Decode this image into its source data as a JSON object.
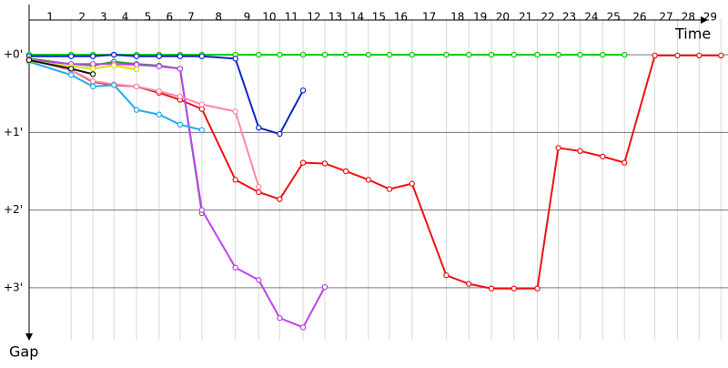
{
  "chart_data": {
    "type": "line",
    "x_label": "Time",
    "y_label": "Gap",
    "categories": [
      "1",
      "2",
      "3",
      "4",
      "5",
      "6",
      "7",
      "8",
      "9",
      "10",
      "11",
      "12",
      "13",
      "14",
      "15",
      "16",
      "17",
      "18",
      "19",
      "20",
      "21",
      "22",
      "23",
      "24",
      "25",
      "26",
      "27",
      "28",
      "29"
    ],
    "x": [
      0,
      0.54,
      0.82,
      1.09,
      1.38,
      1.67,
      1.94,
      2.22,
      2.65,
      2.95,
      3.22,
      3.52,
      3.8,
      4.07,
      4.36,
      4.63,
      4.92,
      5.36,
      5.65,
      5.94,
      6.23,
      6.53,
      6.8,
      7.08,
      7.37,
      7.65,
      8.04,
      8.33,
      8.61,
      8.89
    ],
    "xlim": [
      0,
      8.98
    ],
    "ylim": [
      -0.47,
      3.67
    ],
    "yticks": [
      {
        "value": 0,
        "label": "+0'"
      },
      {
        "value": 1,
        "label": "+1'"
      },
      {
        "value": 2,
        "label": "+2'"
      },
      {
        "value": 3,
        "label": "+3'"
      }
    ],
    "grid": true,
    "series": [
      {
        "color": "#00cc00",
        "values": [
          0,
          0,
          0,
          0,
          0,
          0,
          0,
          0,
          0,
          0,
          0,
          0,
          0,
          0,
          0,
          0,
          0,
          0,
          0,
          0,
          0,
          0,
          0,
          0,
          0,
          0,
          null,
          null,
          null,
          null
        ]
      },
      {
        "color": "#ee1111",
        "values": [
          0.06,
          0.2,
          0.35,
          0.39,
          0.41,
          0.49,
          0.58,
          0.7,
          1.61,
          1.77,
          1.86,
          1.39,
          1.4,
          1.5,
          1.61,
          1.73,
          1.66,
          2.84,
          2.95,
          3.01,
          3.01,
          3.01,
          1.2,
          1.24,
          1.31,
          1.39,
          0.01,
          0.01,
          0.01,
          0.01
        ]
      },
      {
        "color": "#1122cc",
        "values": [
          0.02,
          0.02,
          0.02,
          0,
          0.02,
          0.02,
          0.02,
          0.02,
          0.05,
          0.94,
          1.02,
          0.46,
          null,
          null,
          null,
          null,
          null,
          null,
          null,
          null,
          null,
          null,
          null,
          null,
          null,
          null,
          null,
          null,
          null,
          null
        ]
      },
      {
        "color": "#339933",
        "values": [
          0.05,
          0.12,
          0.14,
          0.09,
          0.12,
          0.14,
          0.18,
          2.04,
          null,
          null,
          null,
          null,
          null,
          null,
          null,
          null,
          null,
          null,
          null,
          null,
          null,
          null,
          null,
          null,
          null,
          null,
          null,
          null,
          null,
          null
        ]
      },
      {
        "color": "#bb44ee",
        "values": [
          0.07,
          0.12,
          0.12,
          0.12,
          0.13,
          0.15,
          0.18,
          2.0,
          2.74,
          2.9,
          3.39,
          3.51,
          2.99,
          null,
          null,
          null,
          null,
          null,
          null,
          null,
          null,
          null,
          null,
          null,
          null,
          null,
          null,
          null,
          null,
          null
        ]
      },
      {
        "color": "#ff88aa",
        "values": [
          0.06,
          0.2,
          0.34,
          0.38,
          0.41,
          0.47,
          0.54,
          0.64,
          0.73,
          1.7,
          null,
          null,
          null,
          null,
          null,
          null,
          null,
          null,
          null,
          null,
          null,
          null,
          null,
          null,
          null,
          null,
          null,
          null,
          null,
          null
        ]
      },
      {
        "color": "#22aaee",
        "values": [
          0.09,
          0.26,
          0.41,
          0.39,
          0.71,
          0.77,
          0.9,
          0.97,
          null,
          null,
          null,
          null,
          null,
          null,
          null,
          null,
          null,
          null,
          null,
          null,
          null,
          null,
          null,
          null,
          null,
          null,
          null,
          null,
          null,
          null
        ]
      },
      {
        "color": "#dddd00",
        "values": [
          0.08,
          0.15,
          0.18,
          0.14,
          0.19,
          null,
          null,
          null,
          null,
          null,
          null,
          null,
          null,
          null,
          null,
          null,
          null,
          null,
          null,
          null,
          null,
          null,
          null,
          null,
          null,
          null,
          null,
          null,
          null,
          null
        ]
      },
      {
        "color": "#111111",
        "values": [
          0.07,
          0.18,
          0.25,
          null,
          null,
          null,
          null,
          null,
          null,
          null,
          null,
          null,
          null,
          null,
          null,
          null,
          null,
          null,
          null,
          null,
          null,
          null,
          null,
          null,
          null,
          null,
          null,
          null,
          null,
          null
        ]
      }
    ]
  }
}
